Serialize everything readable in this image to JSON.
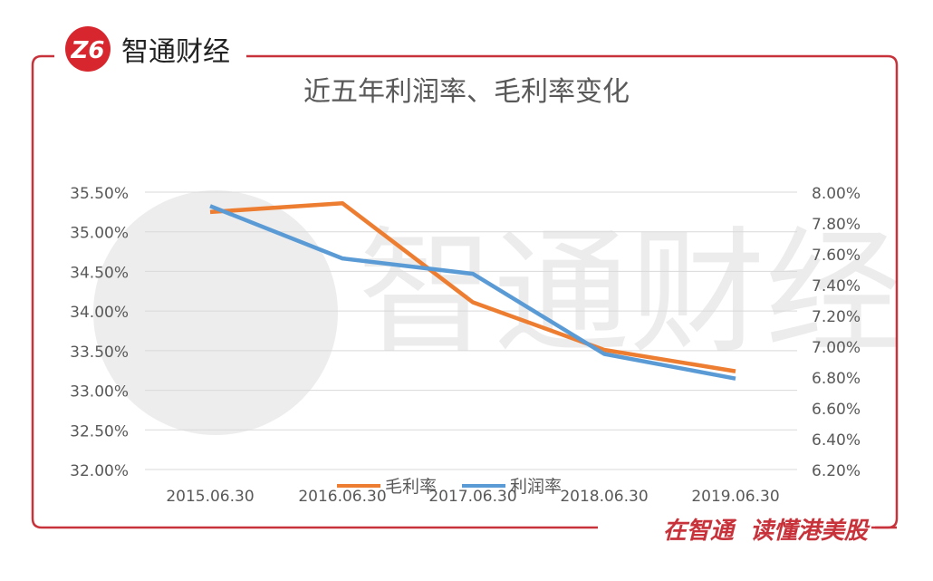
{
  "header": {
    "logo_mark": "Z6",
    "brand": "智通财经"
  },
  "footer": {
    "slogan": "在智通  读懂港美股"
  },
  "watermark": {
    "text": "智通财经"
  },
  "colors": {
    "frame": "#c8323a",
    "gross_margin": "#ed7d31",
    "net_margin": "#5b9bd5",
    "grid": "#d9d9d9",
    "tick": "#595959"
  },
  "chart_data": {
    "type": "line",
    "title": "近五年利润率、毛利率变化",
    "categories": [
      "2015.06.30",
      "2016.06.30",
      "2017.06.30",
      "2018.06.30",
      "2019.06.30"
    ],
    "series": [
      {
        "name": "毛利率",
        "axis": "left",
        "values": [
          35.25,
          35.36,
          34.11,
          33.51,
          33.24
        ]
      },
      {
        "name": "利润率",
        "axis": "right",
        "values": [
          7.91,
          7.57,
          7.47,
          6.95,
          6.79
        ]
      }
    ],
    "y_left": {
      "min": 32.0,
      "max": 35.5,
      "ticks": [
        "32.00%",
        "32.50%",
        "33.00%",
        "33.50%",
        "34.00%",
        "34.50%",
        "35.00%",
        "35.50%"
      ]
    },
    "y_right": {
      "min": 6.2,
      "max": 8.0,
      "ticks": [
        "6.20%",
        "6.40%",
        "6.60%",
        "6.80%",
        "7.00%",
        "7.20%",
        "7.40%",
        "7.60%",
        "7.80%",
        "8.00%"
      ]
    },
    "grid": true,
    "legend_position": "bottom"
  }
}
